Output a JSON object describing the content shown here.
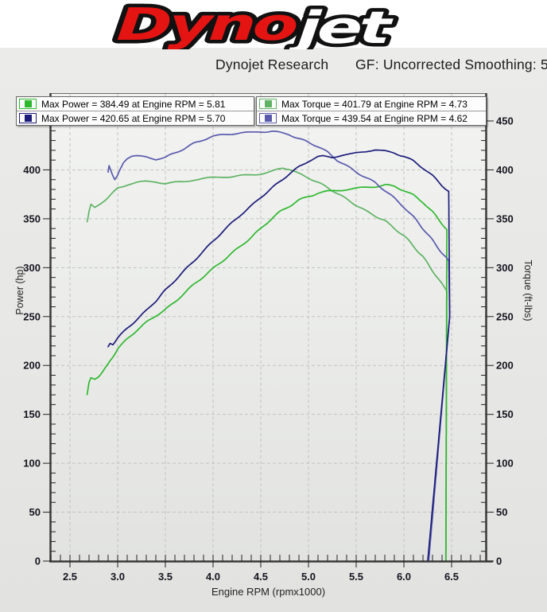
{
  "logo": {
    "dyno": "Dyno",
    "jet": "jet",
    "red": "#e41413",
    "white": "#ffffff",
    "outline": "#111111"
  },
  "header": {
    "title_left": "Dynojet Research",
    "title_right": "GF: Uncorrected Smoothing: 5"
  },
  "legend": {
    "power_box": [
      {
        "label": "Max Power = 384.49 at Engine RPM = 5.81",
        "color": "#2eb82e"
      },
      {
        "label": "Max Power = 420.65 at Engine RPM = 5.70",
        "color": "#1c1c7a"
      }
    ],
    "torque_box": [
      {
        "label": "Max Torque = 401.79 at Engine RPM = 4.73",
        "color": "#5fb363"
      },
      {
        "label": "Max Torque = 439.54 at Engine RPM = 4.62",
        "color": "#5a5aad"
      }
    ]
  },
  "chart_data": {
    "type": "line",
    "title": "Dynojet Research",
    "subtitle": "GF: Uncorrected Smoothing: 5",
    "xlabel": "Engine RPM (rpmx1000)",
    "ylabel_left": "Power (hp)",
    "ylabel_right": "Torque (ft-lbs)",
    "xlim": [
      2.3,
      6.87
    ],
    "ylim": [
      0,
      477
    ],
    "x_major_ticks": [
      2.5,
      3.0,
      3.5,
      4.0,
      4.5,
      5.0,
      5.5,
      6.0,
      6.5
    ],
    "y_major_ticks": [
      0,
      50,
      100,
      150,
      200,
      250,
      300,
      350,
      400,
      450
    ],
    "x_minor_step": 0.1,
    "y_minor_step": 10,
    "grid": "dashed",
    "legend_position": "top",
    "annotations": {
      "max_power_green": {
        "value": 384.49,
        "rpm": 5.81
      },
      "max_power_navy": {
        "value": 420.65,
        "rpm": 5.7
      },
      "max_torque_green": {
        "value": 401.79,
        "rpm": 4.73
      },
      "max_torque_purple": {
        "value": 439.54,
        "rpm": 4.62
      }
    },
    "series": [
      {
        "name": "Torque run 1 (green)",
        "axis": "right",
        "color": "#5fb363",
        "points": [
          [
            2.68,
            347
          ],
          [
            2.7,
            358
          ],
          [
            2.72,
            364
          ],
          [
            2.76,
            361
          ],
          [
            2.8,
            364
          ],
          [
            2.9,
            372
          ],
          [
            3.0,
            381
          ],
          [
            3.1,
            385
          ],
          [
            3.2,
            387
          ],
          [
            3.3,
            388
          ],
          [
            3.4,
            388
          ],
          [
            3.5,
            386
          ],
          [
            3.6,
            387
          ],
          [
            3.7,
            388
          ],
          [
            3.8,
            390
          ],
          [
            3.9,
            391
          ],
          [
            4.0,
            392
          ],
          [
            4.1,
            393
          ],
          [
            4.2,
            393
          ],
          [
            4.3,
            394
          ],
          [
            4.4,
            395
          ],
          [
            4.5,
            396
          ],
          [
            4.6,
            398
          ],
          [
            4.73,
            401.8
          ],
          [
            4.8,
            401
          ],
          [
            4.9,
            396
          ],
          [
            5.0,
            392
          ],
          [
            5.1,
            387
          ],
          [
            5.2,
            382
          ],
          [
            5.3,
            376
          ],
          [
            5.4,
            370
          ],
          [
            5.5,
            364
          ],
          [
            5.6,
            358
          ],
          [
            5.7,
            353
          ],
          [
            5.8,
            348
          ],
          [
            5.9,
            340
          ],
          [
            6.0,
            333
          ],
          [
            6.1,
            322
          ],
          [
            6.2,
            311
          ],
          [
            6.3,
            297
          ],
          [
            6.4,
            283
          ],
          [
            6.45,
            276
          ],
          [
            6.44,
            0
          ]
        ]
      },
      {
        "name": "Power run 1 (green)",
        "axis": "left",
        "color": "#2eb82e",
        "points": [
          [
            2.68,
            171
          ],
          [
            2.7,
            182
          ],
          [
            2.72,
            187
          ],
          [
            2.76,
            186
          ],
          [
            2.8,
            189
          ],
          [
            2.85,
            195
          ],
          [
            2.9,
            201
          ],
          [
            3.0,
            217
          ],
          [
            3.1,
            227
          ],
          [
            3.2,
            236
          ],
          [
            3.3,
            244
          ],
          [
            3.4,
            251
          ],
          [
            3.5,
            257
          ],
          [
            3.6,
            265
          ],
          [
            3.7,
            274
          ],
          [
            3.8,
            283
          ],
          [
            3.9,
            291
          ],
          [
            4.0,
            299
          ],
          [
            4.1,
            307
          ],
          [
            4.2,
            315
          ],
          [
            4.3,
            323
          ],
          [
            4.4,
            331
          ],
          [
            4.5,
            340
          ],
          [
            4.6,
            349
          ],
          [
            4.7,
            357
          ],
          [
            4.8,
            363
          ],
          [
            4.9,
            369
          ],
          [
            5.0,
            373
          ],
          [
            5.1,
            376
          ],
          [
            5.2,
            378
          ],
          [
            5.3,
            379
          ],
          [
            5.4,
            380
          ],
          [
            5.5,
            381
          ],
          [
            5.6,
            382
          ],
          [
            5.7,
            383
          ],
          [
            5.81,
            384.5
          ],
          [
            5.9,
            383
          ],
          [
            6.0,
            379
          ],
          [
            6.1,
            374
          ],
          [
            6.2,
            367
          ],
          [
            6.3,
            357
          ],
          [
            6.4,
            345
          ],
          [
            6.45,
            339
          ],
          [
            6.44,
            0
          ]
        ]
      },
      {
        "name": "Torque run 2 (blue)",
        "axis": "right",
        "color": "#5a5aad",
        "points": [
          [
            2.9,
            397
          ],
          [
            2.91,
            404
          ],
          [
            2.94,
            397
          ],
          [
            2.97,
            390
          ],
          [
            3.0,
            394
          ],
          [
            3.03,
            401
          ],
          [
            3.06,
            408
          ],
          [
            3.1,
            412
          ],
          [
            3.15,
            414
          ],
          [
            3.2,
            414
          ],
          [
            3.3,
            413
          ],
          [
            3.4,
            411
          ],
          [
            3.5,
            413
          ],
          [
            3.6,
            417
          ],
          [
            3.7,
            422
          ],
          [
            3.8,
            427
          ],
          [
            3.9,
            431
          ],
          [
            4.0,
            434
          ],
          [
            4.1,
            436
          ],
          [
            4.2,
            437
          ],
          [
            4.3,
            438
          ],
          [
            4.4,
            438
          ],
          [
            4.5,
            439
          ],
          [
            4.62,
            439.5
          ],
          [
            4.7,
            438
          ],
          [
            4.8,
            436
          ],
          [
            4.9,
            432
          ],
          [
            5.0,
            428
          ],
          [
            5.1,
            424
          ],
          [
            5.2,
            418
          ],
          [
            5.3,
            410
          ],
          [
            5.4,
            404
          ],
          [
            5.5,
            398
          ],
          [
            5.6,
            392
          ],
          [
            5.7,
            387
          ],
          [
            5.8,
            379
          ],
          [
            5.9,
            371
          ],
          [
            6.0,
            362
          ],
          [
            6.1,
            352
          ],
          [
            6.2,
            340
          ],
          [
            6.3,
            328
          ],
          [
            6.4,
            315
          ],
          [
            6.47,
            307
          ],
          [
            6.48,
            250
          ],
          [
            6.26,
            0
          ]
        ]
      },
      {
        "name": "Power run 2 (navy)",
        "axis": "left",
        "color": "#1c1c7a",
        "points": [
          [
            2.9,
            219
          ],
          [
            2.92,
            223
          ],
          [
            2.95,
            222
          ],
          [
            3.0,
            228
          ],
          [
            3.1,
            238
          ],
          [
            3.2,
            247
          ],
          [
            3.3,
            256
          ],
          [
            3.4,
            266
          ],
          [
            3.5,
            277
          ],
          [
            3.6,
            287
          ],
          [
            3.7,
            297
          ],
          [
            3.8,
            307
          ],
          [
            3.9,
            317
          ],
          [
            4.0,
            327
          ],
          [
            4.1,
            337
          ],
          [
            4.2,
            346
          ],
          [
            4.3,
            355
          ],
          [
            4.4,
            363
          ],
          [
            4.5,
            372
          ],
          [
            4.6,
            380
          ],
          [
            4.7,
            388
          ],
          [
            4.8,
            396
          ],
          [
            4.9,
            403
          ],
          [
            5.0,
            409
          ],
          [
            5.1,
            413
          ],
          [
            5.15,
            414
          ],
          [
            5.25,
            413
          ],
          [
            5.35,
            415
          ],
          [
            5.45,
            416
          ],
          [
            5.55,
            418
          ],
          [
            5.65,
            420
          ],
          [
            5.7,
            420.7
          ],
          [
            5.8,
            419
          ],
          [
            5.9,
            417
          ],
          [
            6.0,
            414
          ],
          [
            6.1,
            409
          ],
          [
            6.2,
            402
          ],
          [
            6.3,
            394
          ],
          [
            6.4,
            384
          ],
          [
            6.47,
            378
          ],
          [
            6.48,
            250
          ],
          [
            6.25,
            0
          ]
        ]
      }
    ]
  }
}
